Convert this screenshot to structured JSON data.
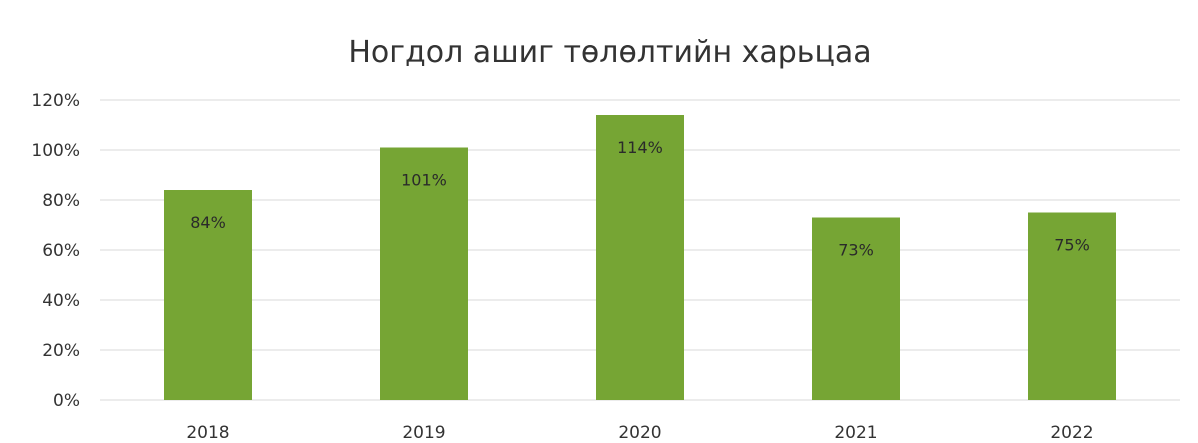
{
  "chart_data": {
    "type": "bar",
    "title": "Ногдол ашиг төлөлтийн харьцаа",
    "xlabel": "",
    "ylabel": "",
    "categories": [
      "2018",
      "2019",
      "2020",
      "2021",
      "2022"
    ],
    "values": [
      0.84,
      1.01,
      1.14,
      0.73,
      0.75
    ],
    "data_labels": [
      "84%",
      "101%",
      "114%",
      "73%",
      "75%"
    ],
    "ylim": [
      0,
      1.2
    ],
    "yticks": [
      0,
      0.2,
      0.4,
      0.6,
      0.8,
      1.0,
      1.2
    ],
    "ytick_labels": [
      "0%",
      "20%",
      "40%",
      "60%",
      "80%",
      "100%",
      "120%"
    ],
    "grid": true,
    "legend": "none",
    "bar_color": "#76a534"
  }
}
